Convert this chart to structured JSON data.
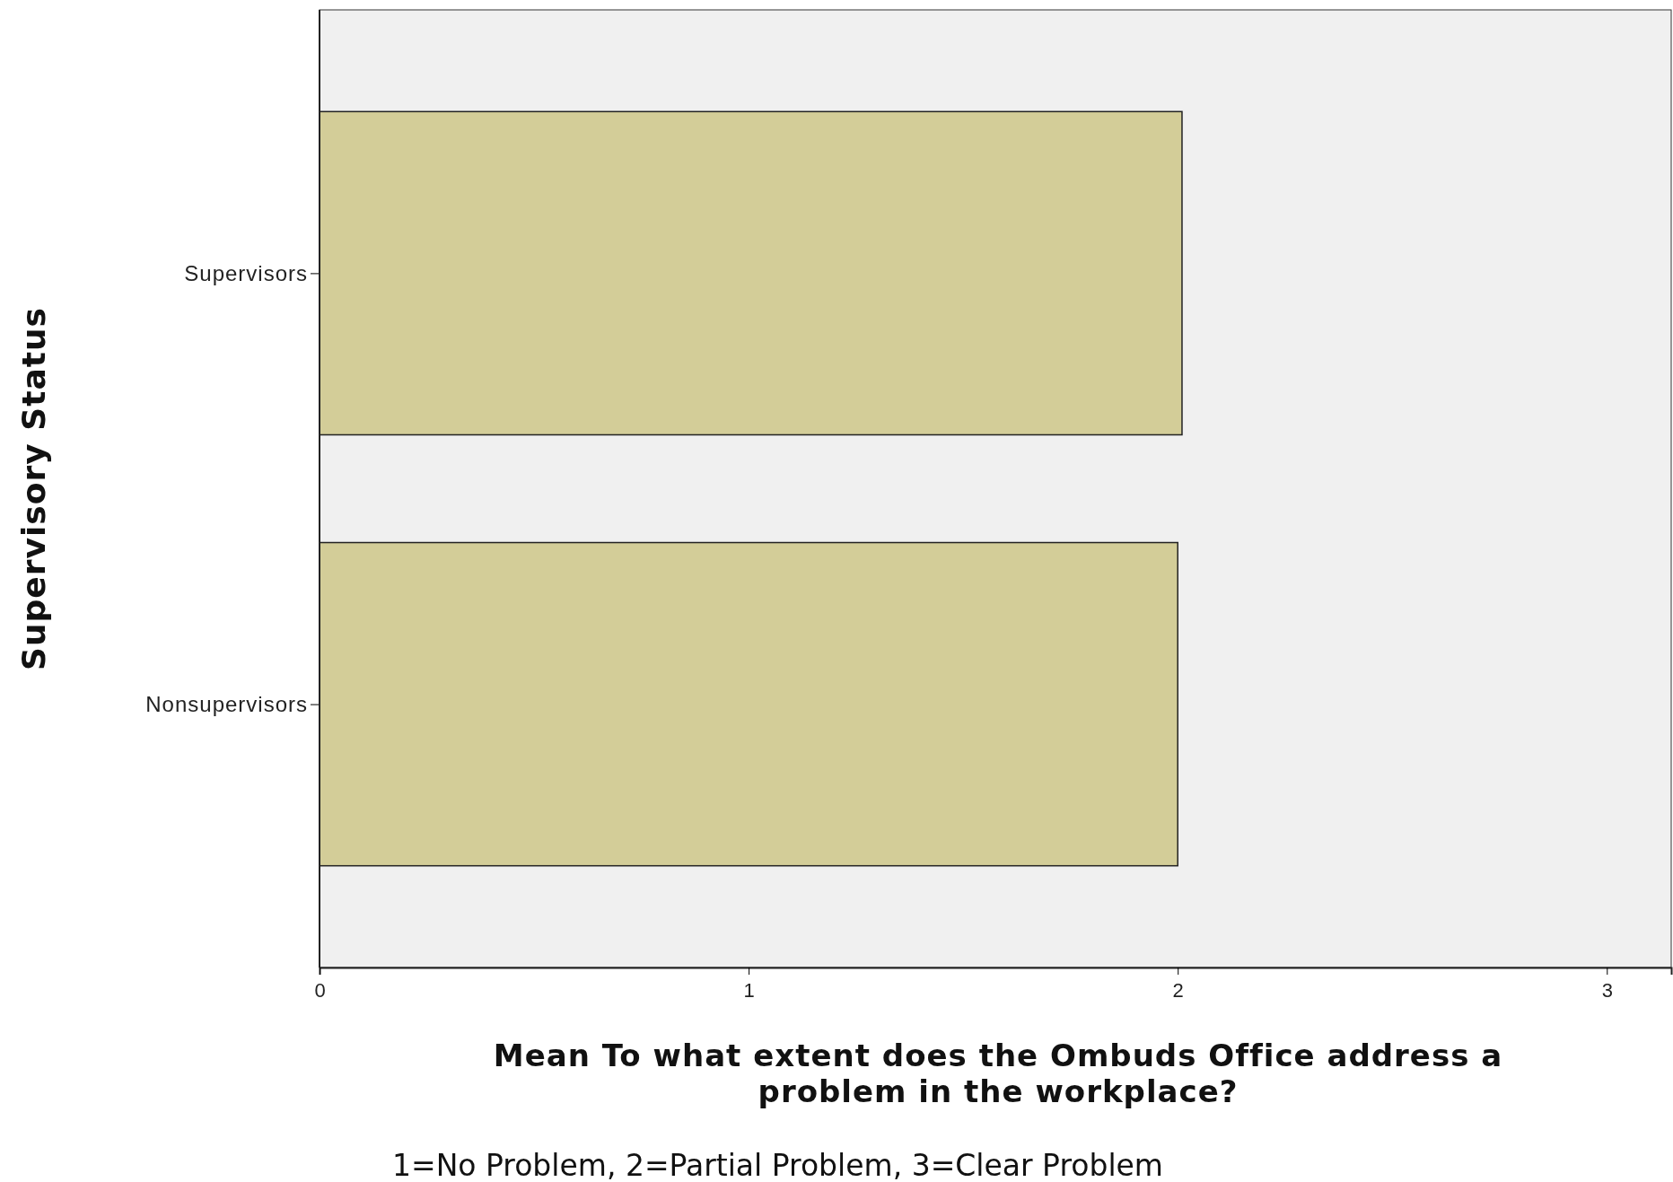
{
  "chart_data": {
    "type": "bar",
    "orientation": "horizontal",
    "categories": [
      "Supervisors",
      "Nonsupervisors"
    ],
    "values": [
      2.01,
      2.0
    ],
    "color": "#d3cd98",
    "xlim": [
      0,
      3.15
    ],
    "xticks": [
      0,
      1,
      2,
      3
    ],
    "xlabel": "Mean To what extent does the Ombuds Office address a problem in the workplace?",
    "ylabel": "Supervisory Status",
    "annotations": [
      "1=No Problem, 2=Partial Problem, 3=Clear Problem"
    ],
    "grid": false
  }
}
